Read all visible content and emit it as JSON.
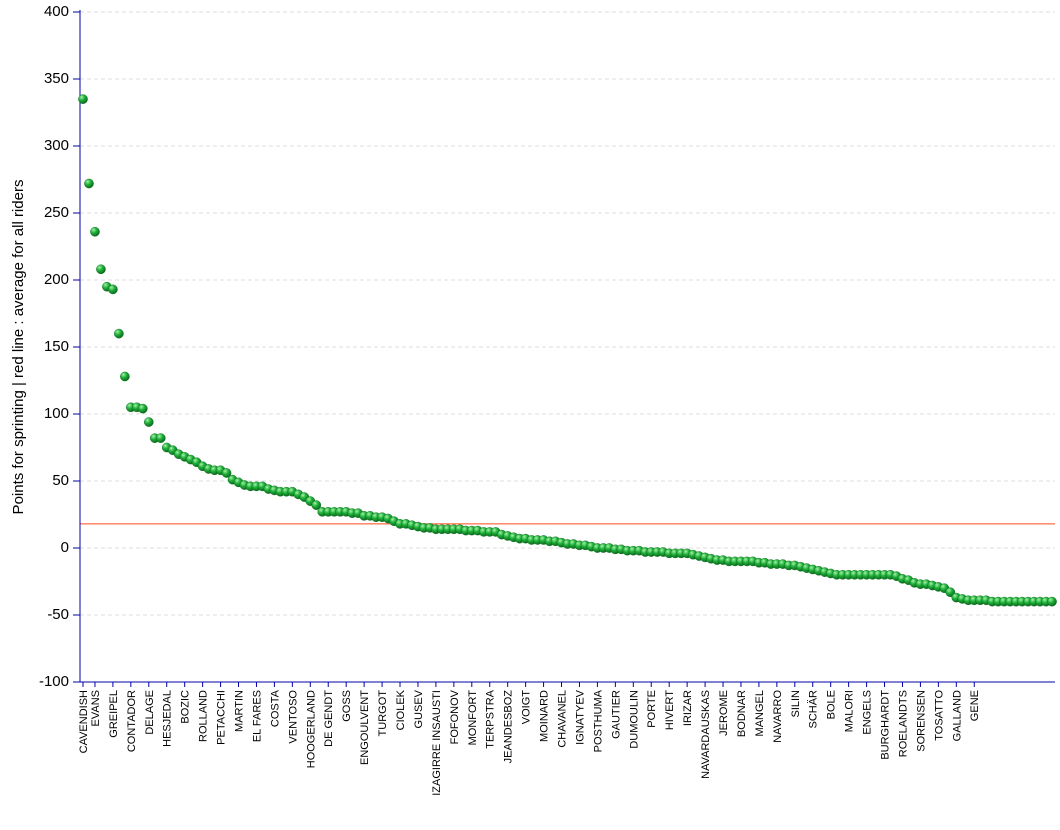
{
  "chart_data": {
    "type": "scatter",
    "title": "",
    "xlabel": "",
    "ylabel": "Points for sprinting | red line : average for all riders",
    "ylim": [
      -100,
      400
    ],
    "yticks": [
      400,
      350,
      300,
      250,
      200,
      150,
      100,
      50,
      0,
      -50,
      -100
    ],
    "grid": true,
    "average_line": 18,
    "colors": {
      "point": "#22b33c",
      "point_light": "#a6f2a8",
      "point_dark": "#0b6b1d",
      "average_line": "#ff4a1c",
      "axis": "#0000aa",
      "grid": "#dddddd"
    },
    "labels": [
      {
        "rank": 1,
        "name": "CAVENDISH"
      },
      {
        "rank": 3,
        "name": "EVANS"
      },
      {
        "rank": 6,
        "name": "GREIPEL"
      },
      {
        "rank": 9,
        "name": "CONTADOR"
      },
      {
        "rank": 12,
        "name": "DELAGE"
      },
      {
        "rank": 15,
        "name": "HESJEDAL"
      },
      {
        "rank": 18,
        "name": "BOZIC"
      },
      {
        "rank": 21,
        "name": "ROLLAND"
      },
      {
        "rank": 24,
        "name": "PETACCHI"
      },
      {
        "rank": 27,
        "name": "MARTIN"
      },
      {
        "rank": 30,
        "name": "EL FARES"
      },
      {
        "rank": 33,
        "name": "COSTA"
      },
      {
        "rank": 36,
        "name": "VENTOSO"
      },
      {
        "rank": 39,
        "name": "HOOGERLAND"
      },
      {
        "rank": 42,
        "name": "DE GENDT"
      },
      {
        "rank": 45,
        "name": "GOSS"
      },
      {
        "rank": 48,
        "name": "ENGOULVENT"
      },
      {
        "rank": 51,
        "name": "TURGOT"
      },
      {
        "rank": 54,
        "name": "CIOLEK"
      },
      {
        "rank": 57,
        "name": "GUSEV"
      },
      {
        "rank": 60,
        "name": "IZAGIRRE INSAUSTI"
      },
      {
        "rank": 63,
        "name": "FOFONOV"
      },
      {
        "rank": 66,
        "name": "MONFORT"
      },
      {
        "rank": 69,
        "name": "TERPSTRA"
      },
      {
        "rank": 72,
        "name": "JEANDESBOZ"
      },
      {
        "rank": 75,
        "name": "VOIGT"
      },
      {
        "rank": 78,
        "name": "MOINARD"
      },
      {
        "rank": 81,
        "name": "CHAVANEL"
      },
      {
        "rank": 84,
        "name": "IGNATYEV"
      },
      {
        "rank": 87,
        "name": "POSTHUMA"
      },
      {
        "rank": 90,
        "name": "GAUTIER"
      },
      {
        "rank": 93,
        "name": "DUMOULIN"
      },
      {
        "rank": 96,
        "name": "PORTE"
      },
      {
        "rank": 99,
        "name": "HIVERT"
      },
      {
        "rank": 102,
        "name": "IRIZAR"
      },
      {
        "rank": 105,
        "name": "NAVARDAUSKAS"
      },
      {
        "rank": 108,
        "name": "JEROME"
      },
      {
        "rank": 111,
        "name": "BODNAR"
      },
      {
        "rank": 114,
        "name": "MANGEL"
      },
      {
        "rank": 117,
        "name": "NAVARRO"
      },
      {
        "rank": 120,
        "name": "SILIN"
      },
      {
        "rank": 123,
        "name": "SCHÄR"
      },
      {
        "rank": 126,
        "name": "BOLE"
      },
      {
        "rank": 129,
        "name": "MALORI"
      },
      {
        "rank": 132,
        "name": "ENGELS"
      },
      {
        "rank": 135,
        "name": "BURGHARDT"
      },
      {
        "rank": 138,
        "name": "ROELANDTS"
      },
      {
        "rank": 141,
        "name": "SORENSEN"
      },
      {
        "rank": 144,
        "name": "TOSATTO"
      },
      {
        "rank": 147,
        "name": "GALLAND"
      },
      {
        "rank": 150,
        "name": "GENE"
      }
    ],
    "values": [
      335,
      272,
      236,
      208,
      195,
      193,
      160,
      128,
      105,
      105,
      104,
      94,
      82,
      82,
      75,
      73,
      70,
      68,
      66,
      64,
      61,
      59,
      58,
      58,
      56,
      51,
      49,
      47,
      46,
      46,
      46,
      44,
      43,
      42,
      42,
      42,
      40,
      38,
      35,
      32,
      27,
      27,
      27,
      27,
      27,
      26,
      26,
      24,
      24,
      23,
      23,
      22,
      20,
      18,
      18,
      17,
      16,
      15,
      15,
      14,
      14,
      14,
      14,
      14,
      13,
      13,
      13,
      12,
      12,
      12,
      10,
      9,
      8,
      7,
      7,
      6,
      6,
      6,
      5,
      5,
      4,
      3,
      3,
      2,
      2,
      1,
      0,
      0,
      0,
      -1,
      -1,
      -2,
      -2,
      -2,
      -3,
      -3,
      -3,
      -3,
      -4,
      -4,
      -4,
      -4,
      -5,
      -6,
      -7,
      -8,
      -9,
      -9,
      -10,
      -10,
      -10,
      -10,
      -10,
      -11,
      -11,
      -12,
      -12,
      -12,
      -13,
      -13,
      -14,
      -15,
      -16,
      -17,
      -18,
      -19,
      -20,
      -20,
      -20,
      -20,
      -20,
      -20,
      -20,
      -20,
      -20,
      -20,
      -21,
      -23,
      -24,
      -26,
      -27,
      -27,
      -28,
      -29,
      -30,
      -33,
      -37,
      -38,
      -39,
      -39,
      -39,
      -39,
      -40,
      -40,
      -40,
      -40,
      -40,
      -40,
      -40,
      -40,
      -40,
      -40,
      -40
    ]
  }
}
